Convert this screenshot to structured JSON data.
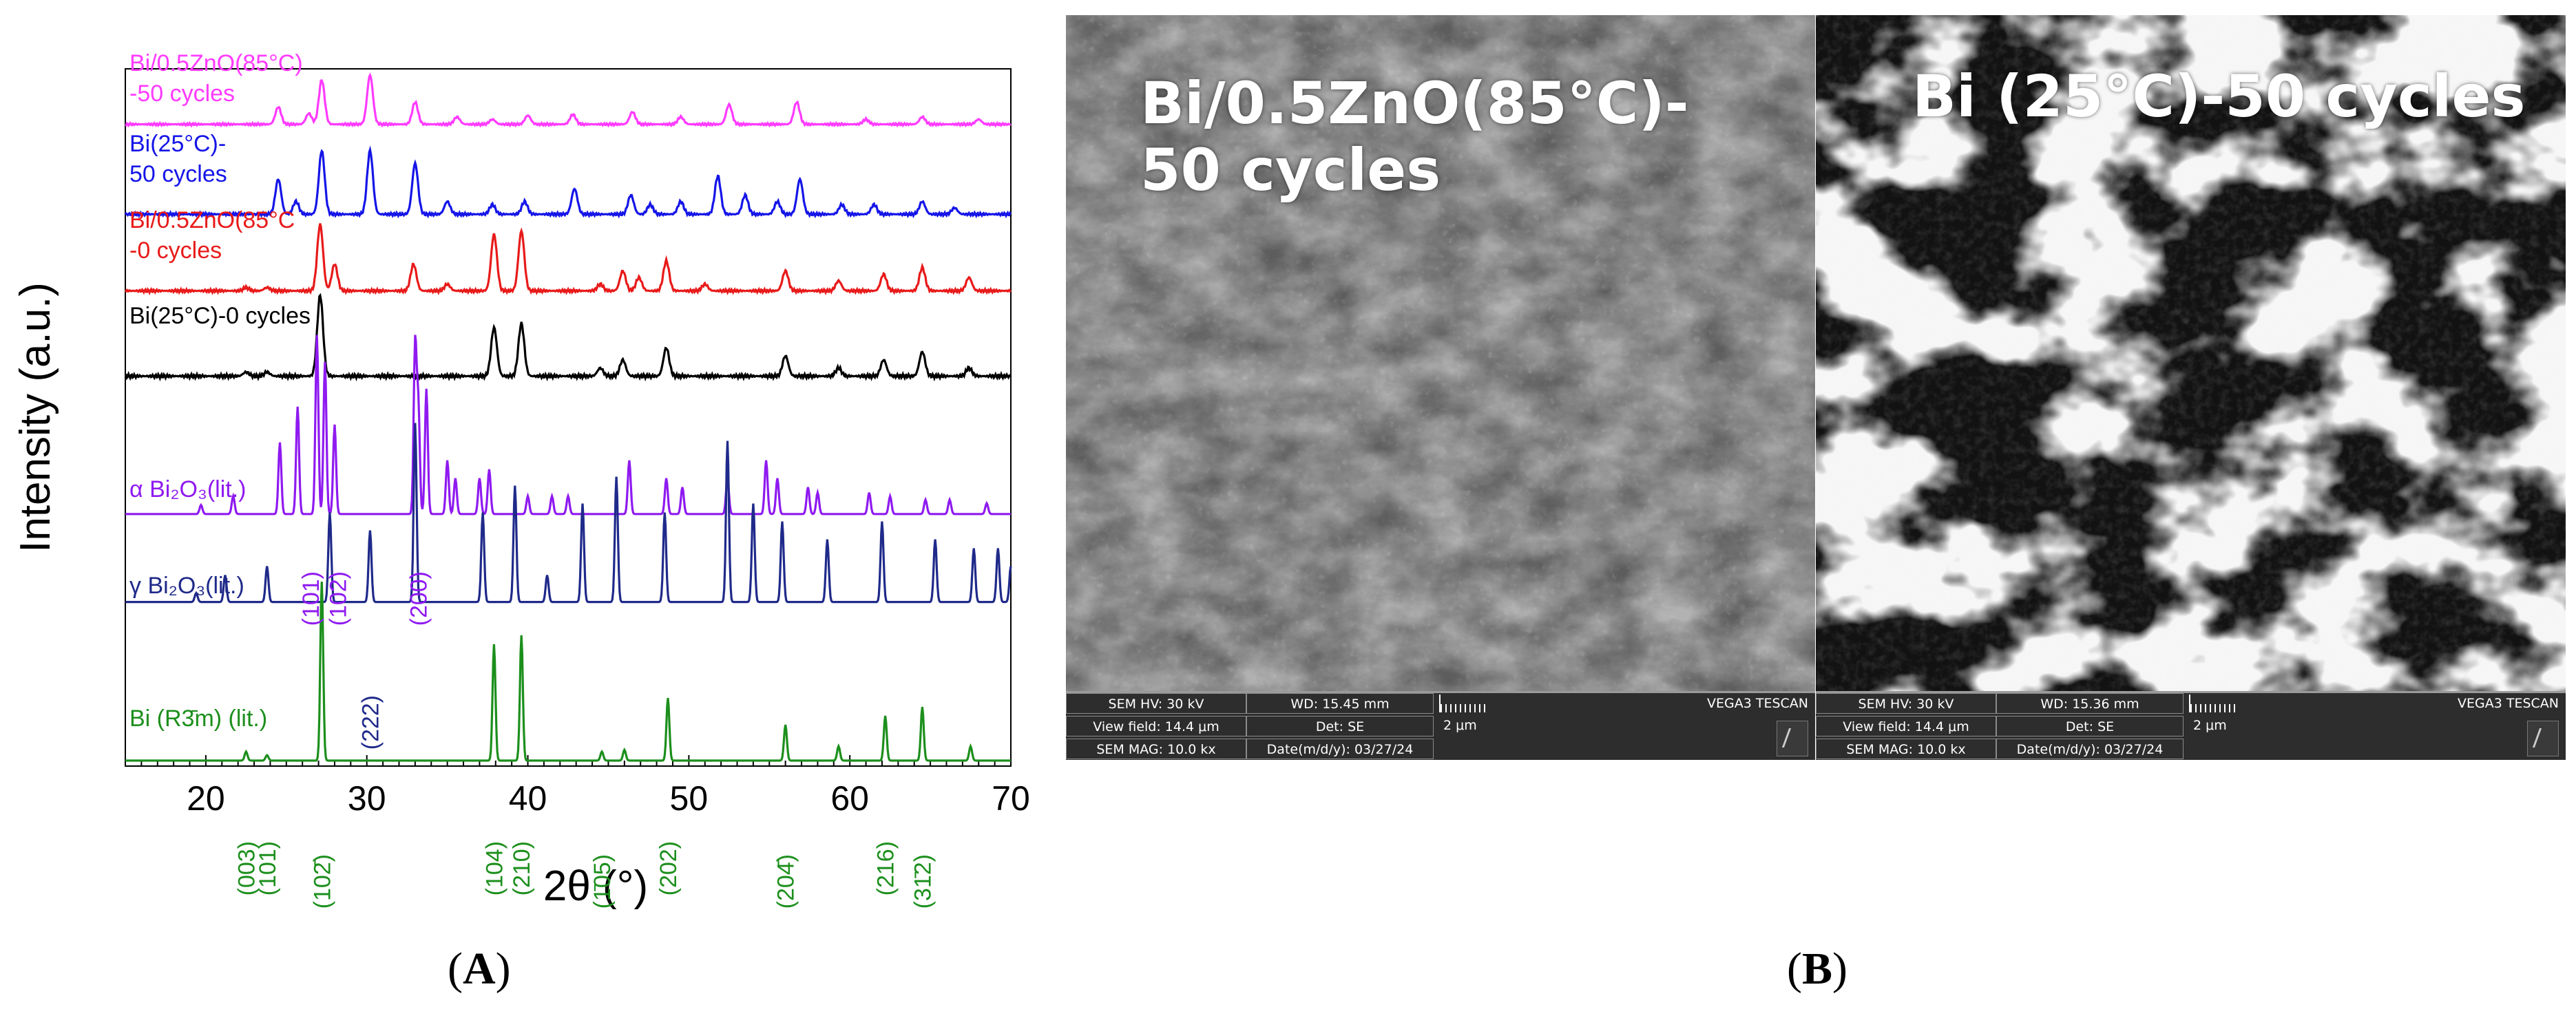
{
  "captions": {
    "a": "A",
    "b": "B"
  },
  "chart_data": {
    "type": "line",
    "xlabel": "2θ (°)",
    "ylabel": "Intensity (a.u.)",
    "xlim": [
      15,
      70
    ],
    "xticks": [
      20,
      30,
      40,
      50,
      60,
      70
    ],
    "grid": false,
    "series": [
      {
        "name": "Bi/0.5ZnO(85°C)\n-50 cycles",
        "color": "#ff3bff",
        "baseline": 0.955,
        "peaks": [
          [
            24.5,
            0.35
          ],
          [
            26.4,
            0.22
          ],
          [
            27.2,
            0.9
          ],
          [
            30.2,
            1.0
          ],
          [
            33.0,
            0.45
          ],
          [
            35.6,
            0.15
          ],
          [
            37.8,
            0.1
          ],
          [
            40.0,
            0.18
          ],
          [
            42.8,
            0.2
          ],
          [
            46.5,
            0.25
          ],
          [
            49.5,
            0.15
          ],
          [
            52.5,
            0.4
          ],
          [
            56.7,
            0.45
          ],
          [
            61.0,
            0.1
          ],
          [
            64.5,
            0.15
          ],
          [
            68.0,
            0.1
          ]
        ]
      },
      {
        "name": "Bi(25°C)-\n50 cycles",
        "color": "#1515e8",
        "baseline": 0.82,
        "peaks": [
          [
            24.5,
            0.55
          ],
          [
            25.6,
            0.2
          ],
          [
            27.2,
            1.0
          ],
          [
            30.2,
            1.0
          ],
          [
            33.0,
            0.8
          ],
          [
            35.0,
            0.2
          ],
          [
            37.8,
            0.15
          ],
          [
            39.8,
            0.2
          ],
          [
            42.9,
            0.4
          ],
          [
            46.4,
            0.3
          ],
          [
            47.6,
            0.15
          ],
          [
            49.5,
            0.2
          ],
          [
            51.8,
            0.6
          ],
          [
            53.5,
            0.3
          ],
          [
            55.5,
            0.2
          ],
          [
            56.9,
            0.55
          ],
          [
            59.5,
            0.15
          ],
          [
            61.5,
            0.15
          ],
          [
            64.5,
            0.2
          ],
          [
            66.5,
            0.1
          ]
        ]
      },
      {
        "name": "Bi/0.5ZnO(85°C\n-0 cycles",
        "color": "#e81a1a",
        "baseline": 0.705,
        "peaks": [
          [
            22.5,
            0.05
          ],
          [
            23.8,
            0.05
          ],
          [
            27.1,
            1.0
          ],
          [
            28.0,
            0.4
          ],
          [
            32.9,
            0.4
          ],
          [
            35.0,
            0.1
          ],
          [
            37.9,
            0.85
          ],
          [
            39.6,
            0.9
          ],
          [
            44.5,
            0.1
          ],
          [
            45.9,
            0.3
          ],
          [
            46.9,
            0.2
          ],
          [
            48.6,
            0.45
          ],
          [
            51.0,
            0.1
          ],
          [
            56.0,
            0.3
          ],
          [
            59.3,
            0.15
          ],
          [
            62.1,
            0.25
          ],
          [
            64.5,
            0.35
          ],
          [
            67.4,
            0.2
          ]
        ]
      },
      {
        "name": "Bi(25°C)-0 cycles",
        "color": "#000000",
        "baseline": 0.577,
        "peaks": [
          [
            22.5,
            0.05
          ],
          [
            23.8,
            0.05
          ],
          [
            27.1,
            1.0
          ],
          [
            37.9,
            0.6
          ],
          [
            39.6,
            0.65
          ],
          [
            44.5,
            0.1
          ],
          [
            45.9,
            0.2
          ],
          [
            48.6,
            0.35
          ],
          [
            56.0,
            0.25
          ],
          [
            59.3,
            0.1
          ],
          [
            62.1,
            0.2
          ],
          [
            64.5,
            0.3
          ],
          [
            67.4,
            0.1
          ]
        ]
      },
      {
        "name": "α Bi₂O₃(lit.)",
        "color": "#8f1af0",
        "baseline": 0.37,
        "peaks": [
          [
            19.7,
            0.05
          ],
          [
            21.7,
            0.1
          ],
          [
            24.6,
            0.4
          ],
          [
            25.7,
            0.6
          ],
          [
            26.9,
            1.0
          ],
          [
            27.4,
            0.85
          ],
          [
            28.0,
            0.5
          ],
          [
            33.0,
            0.95
          ],
          [
            33.2,
            0.6
          ],
          [
            33.7,
            0.7
          ],
          [
            35.0,
            0.3
          ],
          [
            35.5,
            0.2
          ],
          [
            37.0,
            0.2
          ],
          [
            37.6,
            0.25
          ],
          [
            40.0,
            0.1
          ],
          [
            41.5,
            0.1
          ],
          [
            42.5,
            0.1
          ],
          [
            46.3,
            0.3
          ],
          [
            48.6,
            0.2
          ],
          [
            49.6,
            0.15
          ],
          [
            52.4,
            0.2
          ],
          [
            54.8,
            0.3
          ],
          [
            55.5,
            0.2
          ],
          [
            57.4,
            0.15
          ],
          [
            58.0,
            0.12
          ],
          [
            61.2,
            0.12
          ],
          [
            62.5,
            0.1
          ],
          [
            64.7,
            0.08
          ],
          [
            66.2,
            0.08
          ],
          [
            68.5,
            0.06
          ]
        ]
      },
      {
        "name": "γ Bi₂O₃(lit.)",
        "color": "#1f2a8a",
        "baseline": 0.238,
        "peaks": [
          [
            19.4,
            0.05
          ],
          [
            21.2,
            0.15
          ],
          [
            23.8,
            0.2
          ],
          [
            27.7,
            0.5
          ],
          [
            30.2,
            0.4
          ],
          [
            33.0,
            1.0
          ],
          [
            37.2,
            0.5
          ],
          [
            39.2,
            0.65
          ],
          [
            41.2,
            0.15
          ],
          [
            43.4,
            0.55
          ],
          [
            45.5,
            0.7
          ],
          [
            48.5,
            0.5
          ],
          [
            52.4,
            0.9
          ],
          [
            54.0,
            0.55
          ],
          [
            55.8,
            0.45
          ],
          [
            58.6,
            0.35
          ],
          [
            62.0,
            0.45
          ],
          [
            65.3,
            0.35
          ],
          [
            67.7,
            0.3
          ],
          [
            69.2,
            0.3
          ],
          [
            70.0,
            0.2
          ]
        ]
      },
      {
        "name": "Bi (R3̄m) (lit.)",
        "color": "#1c8f1c",
        "baseline": 0.0,
        "peaks": [
          [
            22.5,
            0.05
          ],
          [
            23.8,
            0.03
          ],
          [
            27.2,
            1.0
          ],
          [
            37.9,
            0.65
          ],
          [
            39.6,
            0.7
          ],
          [
            44.6,
            0.05
          ],
          [
            46.0,
            0.06
          ],
          [
            48.7,
            0.35
          ],
          [
            56.0,
            0.2
          ],
          [
            59.3,
            0.08
          ],
          [
            62.2,
            0.25
          ],
          [
            64.5,
            0.3
          ],
          [
            67.5,
            0.08
          ]
        ]
      }
    ],
    "annotations": [
      {
        "text": "(101)",
        "x": 26.5,
        "color": "#8f1af0"
      },
      {
        "text": "(102)",
        "x": 28.2,
        "color": "#8f1af0"
      },
      {
        "text": "(200)",
        "x": 33.2,
        "color": "#8f1af0"
      },
      {
        "text": "(222)",
        "x": 30.2,
        "color": "#1f2a8a"
      },
      {
        "text": "(003)",
        "x": 22.5,
        "color": "#1c8f1c"
      },
      {
        "text": "(101)",
        "x": 23.8,
        "color": "#1c8f1c"
      },
      {
        "text": "(102̄)",
        "x": 27.2,
        "color": "#1c8f1c"
      },
      {
        "text": "(104)",
        "x": 37.9,
        "color": "#1c8f1c"
      },
      {
        "text": "(210)",
        "x": 39.6,
        "color": "#1c8f1c"
      },
      {
        "text": "(1̄05)",
        "x": 44.6,
        "color": "#1c8f1c"
      },
      {
        "text": "(202)",
        "x": 48.7,
        "color": "#1c8f1c"
      },
      {
        "text": "(204̄)",
        "x": 56.0,
        "color": "#1c8f1c"
      },
      {
        "text": "(216)",
        "x": 62.2,
        "color": "#1c8f1c"
      },
      {
        "text": "(31̄2)",
        "x": 64.5,
        "color": "#1c8f1c"
      }
    ]
  },
  "sem_panels": [
    {
      "title": "Bi/0.5ZnO(85°C)-\n50 cycles",
      "hv": "SEM HV: 30 kV",
      "wd": "WD: 15.45 mm",
      "view_field": "View field: 14.4 μm",
      "det": "Det: SE",
      "scale": "2 μm",
      "mag": "SEM MAG: 10.0 kx",
      "date": "Date(m/d/y): 03/27/24",
      "brand": "VEGA3 TESCAN"
    },
    {
      "title": "Bi (25°C)-50 cycles",
      "hv": "SEM HV: 30 kV",
      "wd": "WD: 15.36 mm",
      "view_field": "View field: 14.4 μm",
      "det": "Det: SE",
      "scale": "2 μm",
      "mag": "SEM MAG: 10.0 kx",
      "date": "Date(m/d/y): 03/27/24",
      "brand": "VEGA3 TESCAN"
    }
  ]
}
